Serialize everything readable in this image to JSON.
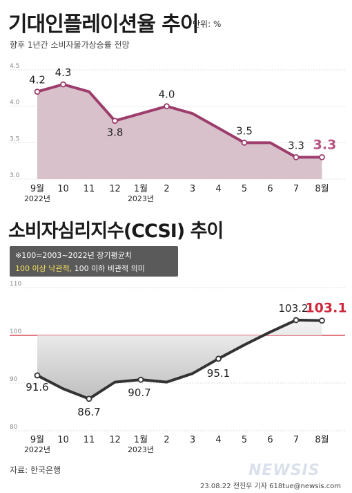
{
  "header": {
    "title1": "기대인플레이션율 추이",
    "unit": "단위: %",
    "subtitle1": "향후 1년간 소비자물가상승률 전망",
    "title2": "소비자심리지수(CCSI) 추이",
    "note_line1": "※100=2003~2022년 장기평균치",
    "note_line2_highlight": "100 이상 낙관적,",
    "note_line2_rest": " 100 이하 비관적 의미",
    "source": "자료: 한국은행",
    "credit": "23.08.22 전진우 기자 618tue@newsis.com",
    "watermark": "NEWSIS"
  },
  "colors": {
    "inflation_line": "#9c3d6c",
    "inflation_fill": "#d9c1cb",
    "inflation_highlight": "#b5527f",
    "ccsi_line": "#333333",
    "ccsi_fill": "#d0d0d0",
    "ccsi_highlight": "#d0273a",
    "reference_line": "#d0273a"
  },
  "chart_data": [
    {
      "type": "area",
      "title": "기대인플레이션율 추이",
      "subtitle": "향후 1년간 소비자물가상승률 전망",
      "unit": "%",
      "categories": [
        "9월",
        "10",
        "11",
        "12",
        "1월",
        "2",
        "3",
        "4",
        "5",
        "6",
        "7",
        "8월"
      ],
      "year_labels": [
        {
          "index": 0,
          "label": "2022년"
        },
        {
          "index": 4,
          "label": "2023년"
        }
      ],
      "values": [
        4.2,
        4.3,
        4.2,
        3.8,
        3.9,
        4.0,
        3.9,
        3.7,
        3.5,
        3.5,
        3.3,
        3.3
      ],
      "data_labels": [
        {
          "index": 0,
          "text": "4.2"
        },
        {
          "index": 1,
          "text": "4.3"
        },
        {
          "index": 3,
          "text": "3.8"
        },
        {
          "index": 5,
          "text": "4.0"
        },
        {
          "index": 8,
          "text": "3.5"
        },
        {
          "index": 10,
          "text": "3.3"
        },
        {
          "index": 11,
          "text": "3.3",
          "highlight": true
        }
      ],
      "markers": [
        0,
        1,
        3,
        5,
        8,
        10,
        11
      ],
      "yticks": [
        "3.0",
        "3.5",
        "4.0",
        "4.5"
      ],
      "ylim": [
        3.0,
        4.5
      ],
      "grid": true
    },
    {
      "type": "area",
      "title": "소비자심리지수(CCSI) 추이",
      "categories": [
        "9월",
        "10",
        "11",
        "12",
        "1월",
        "2",
        "3",
        "4",
        "5",
        "6",
        "7",
        "8월"
      ],
      "year_labels": [
        {
          "index": 0,
          "label": "2022년"
        },
        {
          "index": 4,
          "label": "2023년"
        }
      ],
      "values": [
        91.6,
        88.8,
        86.7,
        90.2,
        90.7,
        90.2,
        92.0,
        95.1,
        98.0,
        100.7,
        103.2,
        103.1
      ],
      "data_labels": [
        {
          "index": 0,
          "text": "91.6"
        },
        {
          "index": 2,
          "text": "86.7"
        },
        {
          "index": 4,
          "text": "90.7"
        },
        {
          "index": 7,
          "text": "95.1"
        },
        {
          "index": 10,
          "text": "103.2"
        },
        {
          "index": 11,
          "text": "103.1",
          "highlight": true
        }
      ],
      "markers": [
        0,
        2,
        4,
        7,
        10,
        11
      ],
      "yticks": [
        "80",
        "90",
        "100",
        "110"
      ],
      "ylim": [
        80,
        110
      ],
      "reference_line": 100,
      "grid": true
    }
  ]
}
